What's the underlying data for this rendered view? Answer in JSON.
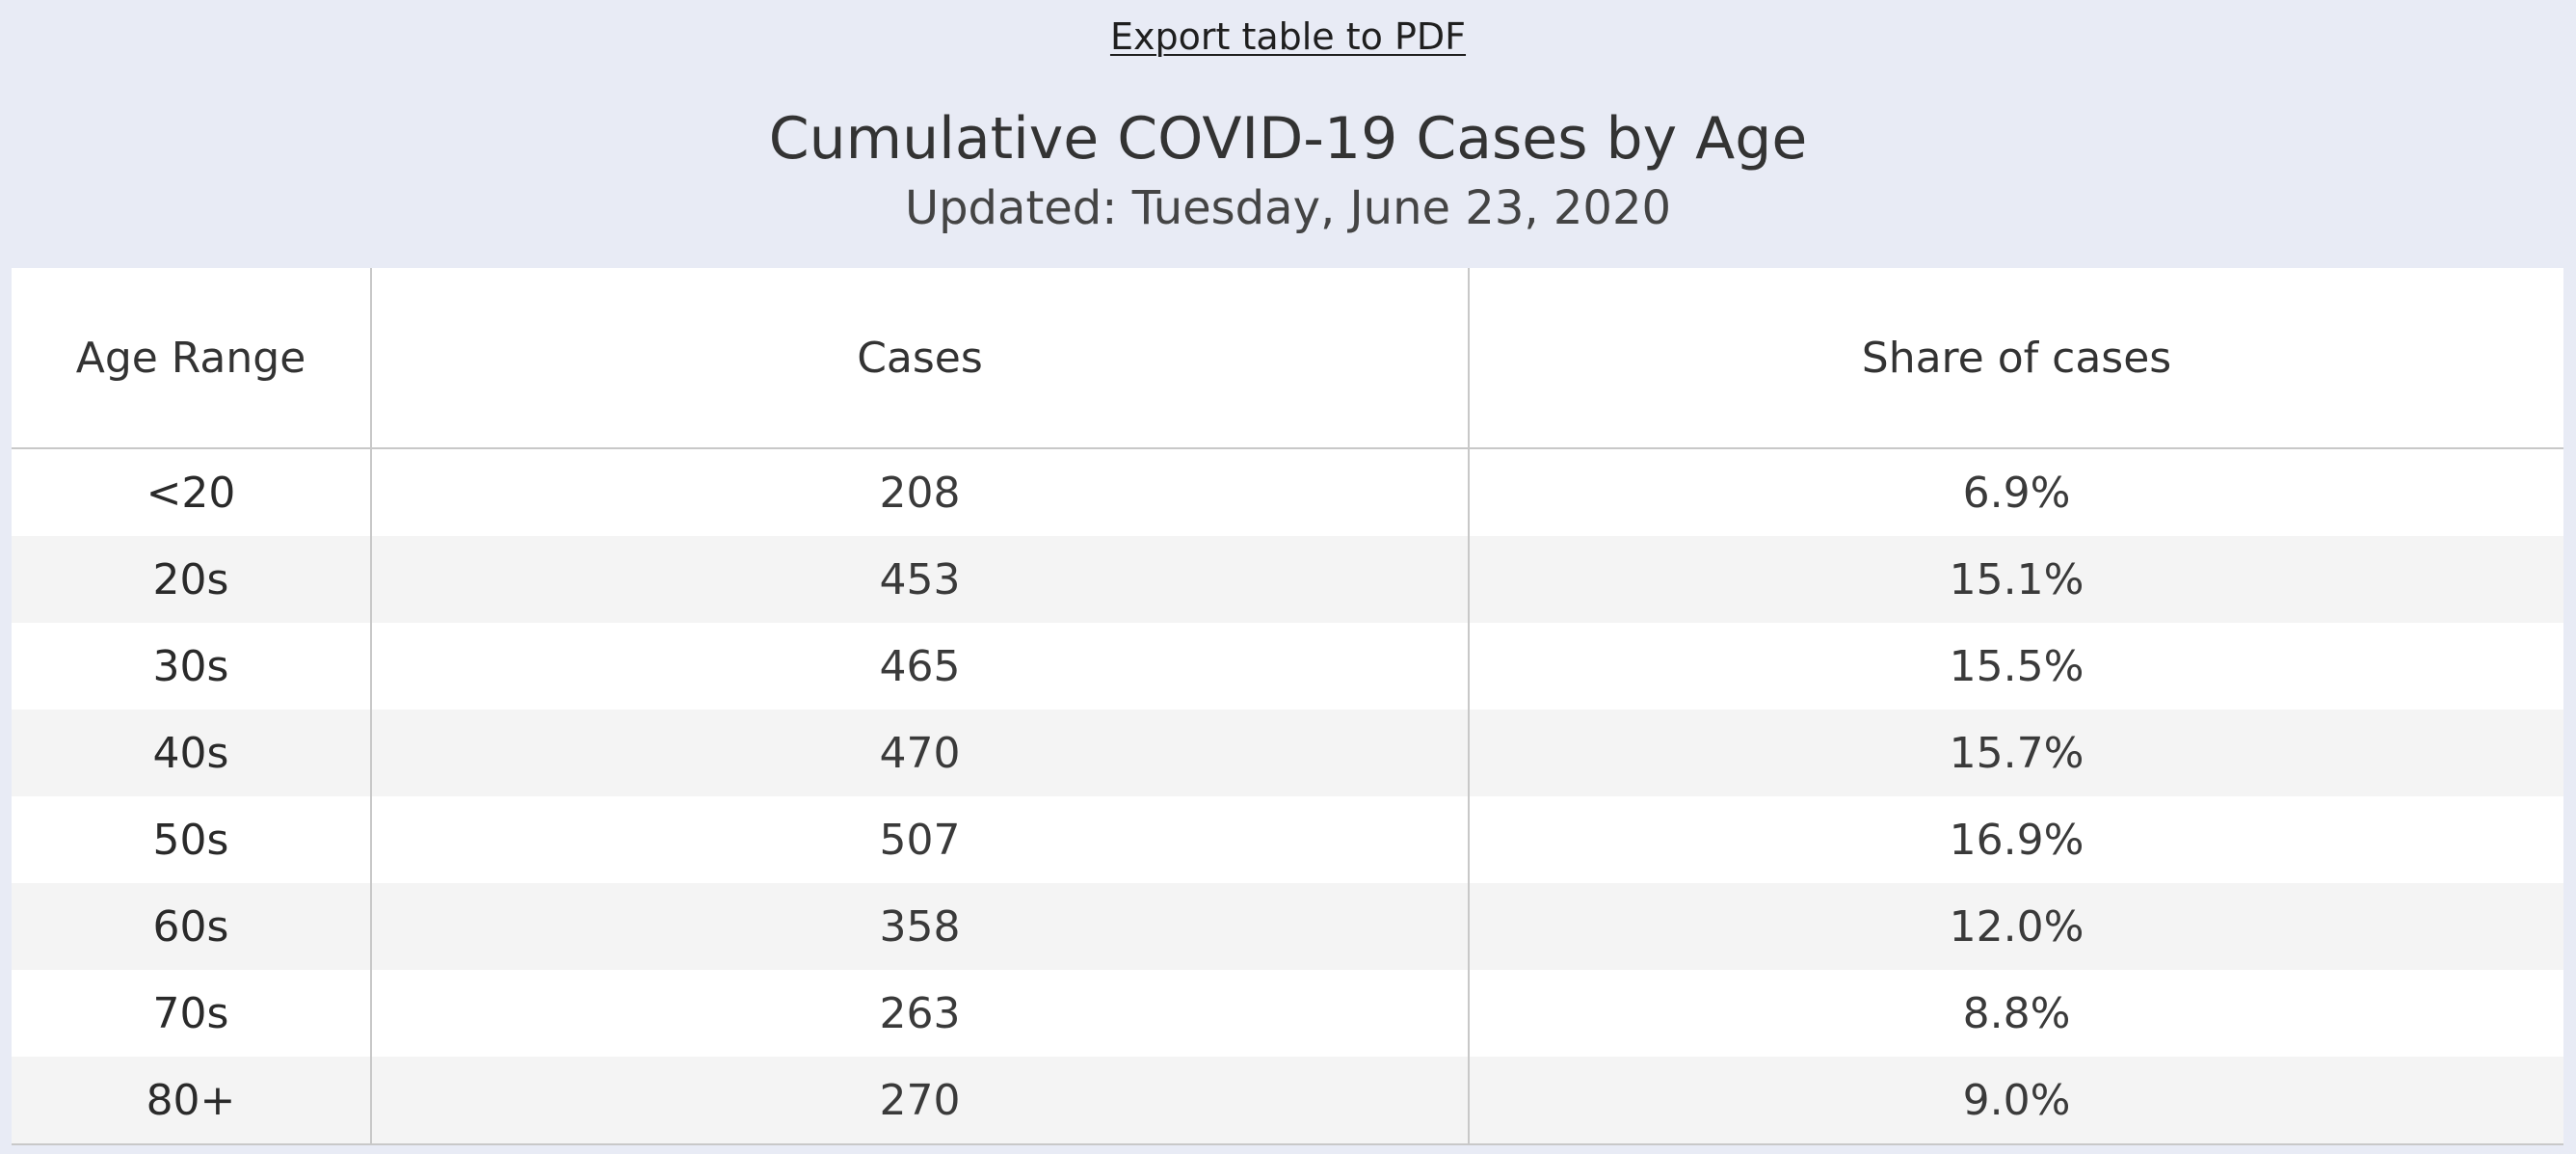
{
  "header": {
    "export_label": "Export table to PDF",
    "title": "Cumulative COVID-19 Cases by Age",
    "subtitle": "Updated: Tuesday, June 23, 2020"
  },
  "table": {
    "columns": [
      "Age Range",
      "Cases",
      "Share of cases"
    ],
    "rows": [
      {
        "age": "<20",
        "cases": "208",
        "share": "6.9%"
      },
      {
        "age": "20s",
        "cases": "453",
        "share": "15.1%"
      },
      {
        "age": "30s",
        "cases": "465",
        "share": "15.5%"
      },
      {
        "age": "40s",
        "cases": "470",
        "share": "15.7%"
      },
      {
        "age": "50s",
        "cases": "507",
        "share": "16.9%"
      },
      {
        "age": "60s",
        "cases": "358",
        "share": "12.0%"
      },
      {
        "age": "70s",
        "cases": "263",
        "share": "8.8%"
      },
      {
        "age": "80+",
        "cases": "270",
        "share": "9.0%"
      }
    ]
  },
  "colors": {
    "page_background": "#e8ebf5",
    "table_background": "#ffffff",
    "row_alt_background": "#f4f4f4",
    "grid_line": "#c8c8c8",
    "text": "#333333"
  }
}
